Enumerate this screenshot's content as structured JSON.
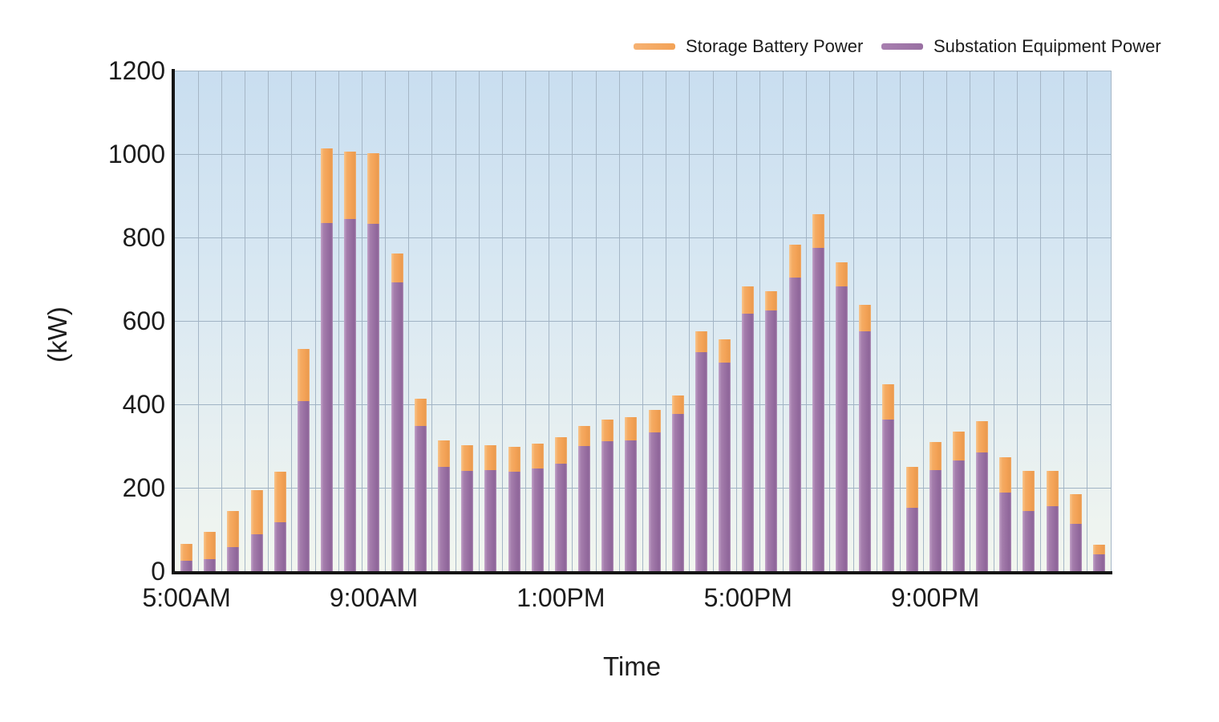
{
  "legend": {
    "items": [
      {
        "key": "battery",
        "label": "Storage Battery Power",
        "color": "#f3a256"
      },
      {
        "key": "substation",
        "label": "Substation Equipment Power",
        "color": "#9970a2"
      }
    ]
  },
  "chart_data": {
    "type": "bar",
    "stacked": true,
    "xlabel": "Time",
    "ylabel": "(kW)",
    "ylim": [
      0,
      1200
    ],
    "yticks": [
      0,
      200,
      400,
      600,
      800,
      1000,
      1200
    ],
    "grid": "both",
    "legend_position": "top-right",
    "xtick_labels": [
      "5:00AM",
      "9:00AM",
      "1:00PM",
      "5:00PM",
      "9:00PM"
    ],
    "xtick_slot_indexes": [
      0,
      8,
      16,
      24,
      32
    ],
    "categories": [
      "5:00AM",
      "5:30AM",
      "6:00AM",
      "6:30AM",
      "7:00AM",
      "7:30AM",
      "8:00AM",
      "8:30AM",
      "9:00AM",
      "9:30AM",
      "10:00AM",
      "10:30AM",
      "11:00AM",
      "11:30AM",
      "12:00PM",
      "12:30PM",
      "1:00PM",
      "1:30PM",
      "2:00PM",
      "2:30PM",
      "3:00PM",
      "3:30PM",
      "4:00PM",
      "4:30PM",
      "5:00PM",
      "5:30PM",
      "6:00PM",
      "6:30PM",
      "7:00PM",
      "7:30PM",
      "8:00PM",
      "8:30PM",
      "9:00PM",
      "9:30PM",
      "10:00PM",
      "10:30PM",
      "11:00PM",
      "11:30PM",
      "12:00AM",
      "12:30AM"
    ],
    "series": [
      {
        "name": "Substation Equipment Power",
        "key": "substation",
        "color": "#9970a2",
        "values": [
          25,
          28,
          58,
          88,
          118,
          408,
          835,
          845,
          832,
          692,
          348,
          250,
          240,
          242,
          238,
          247,
          257,
          300,
          312,
          313,
          332,
          376,
          525,
          500,
          618,
          625,
          703,
          775,
          683,
          575,
          364,
          152,
          243,
          266,
          285,
          189,
          145,
          156,
          114,
          40
        ]
      },
      {
        "name": "Storage Battery Power",
        "key": "battery",
        "color": "#f3a256",
        "values": [
          40,
          67,
          87,
          107,
          120,
          125,
          178,
          160,
          170,
          70,
          65,
          63,
          62,
          60,
          61,
          58,
          65,
          48,
          51,
          57,
          54,
          46,
          50,
          56,
          64,
          47,
          80,
          80,
          57,
          64,
          84,
          98,
          66,
          68,
          74,
          85,
          95,
          85,
          71,
          24
        ]
      }
    ],
    "colors": {
      "battery": "#f3a256",
      "substation": "#9970a2",
      "grid": "#a5b6c6",
      "axis": "#141414",
      "plot_bg_top": "#c9def0",
      "plot_bg_bottom": "#f2f6ef"
    }
  }
}
